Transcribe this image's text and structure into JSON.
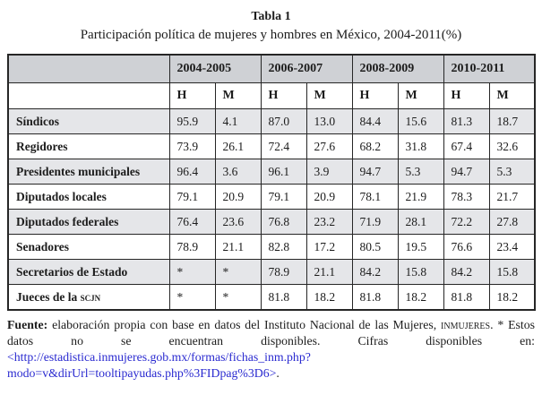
{
  "title": "Tabla 1",
  "subtitle": "Participación política de mujeres y hombres en México, 2004-2011(%)",
  "table": {
    "periods": [
      "2004-2005",
      "2006-2007",
      "2008-2009",
      "2010-2011"
    ],
    "sub_headers": [
      "H",
      "M",
      "H",
      "M",
      "H",
      "M",
      "H",
      "M"
    ],
    "rows": [
      {
        "label": "Síndicos",
        "values": [
          "95.9",
          "4.1",
          "87.0",
          "13.0",
          "84.4",
          "15.6",
          "81.3",
          "18.7"
        ],
        "shaded": true
      },
      {
        "label": "Regidores",
        "values": [
          "73.9",
          "26.1",
          "72.4",
          "27.6",
          "68.2",
          "31.8",
          "67.4",
          "32.6"
        ],
        "shaded": false
      },
      {
        "label": "Presidentes municipales",
        "values": [
          "96.4",
          "3.6",
          "96.1",
          "3.9",
          "94.7",
          "5.3",
          "94.7",
          "5.3"
        ],
        "shaded": true
      },
      {
        "label": "Diputados locales",
        "values": [
          "79.1",
          "20.9",
          "79.1",
          "20.9",
          "78.1",
          "21.9",
          "78.3",
          "21.7"
        ],
        "shaded": false
      },
      {
        "label": "Diputados federales",
        "values": [
          "76.4",
          "23.6",
          "76.8",
          "23.2",
          "71.9",
          "28.1",
          "72.2",
          "27.8"
        ],
        "shaded": true
      },
      {
        "label": "Senadores",
        "values": [
          "78.9",
          "21.1",
          "82.8",
          "17.2",
          "80.5",
          "19.5",
          "76.6",
          "23.4"
        ],
        "shaded": false
      },
      {
        "label": "Secretarios de Estado",
        "values": [
          "*",
          "*",
          "78.9",
          "21.1",
          "84.2",
          "15.8",
          "84.2",
          "15.8"
        ],
        "shaded": true
      },
      {
        "label": "Jueces de la ",
        "label_smallcaps": "scjn",
        "values": [
          "*",
          "*",
          "81.8",
          "18.2",
          "81.8",
          "18.2",
          "81.8",
          "18.2"
        ],
        "shaded": false
      }
    ]
  },
  "footnote": {
    "source_label": "Fuente:",
    "text_1": " elaboración propia con base en datos del Instituto Nacional de las Mujeres, ",
    "smallcaps": "inmujeres",
    "text_2": ". * Estos datos no se encuentran disponibles. Cifras disponibles en: ",
    "link": "<http://estadistica.inmujeres.gob.mx/formas/fichas_inm.php?modo=v&dirUrl=tooltipayudas.php%3FIDpag%3D6>",
    "text_3": "."
  },
  "colors": {
    "header_bg": "#cfd1d5",
    "shaded_row_bg": "#e5e6e9",
    "border": "#262626",
    "link": "#2a2ad0"
  }
}
